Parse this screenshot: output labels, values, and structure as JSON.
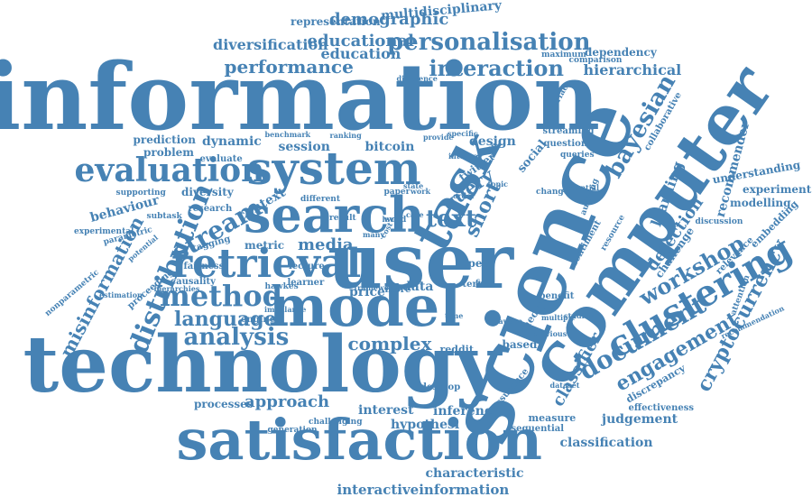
{
  "cloud": {
    "color": "#4682b4",
    "words": [
      "information",
      "technology",
      "satisfaction",
      "user",
      "science",
      "computer",
      "model",
      "search",
      "system",
      "retrieval",
      "task",
      "evaluation",
      "method",
      "language",
      "analysis",
      "clustering",
      "workshop",
      "document",
      "engagement",
      "distribution",
      "stream",
      "complex",
      "text",
      "query",
      "short",
      "bayesian",
      "personalisation",
      "interaction",
      "performance",
      "educational",
      "education",
      "demographic",
      "diversification",
      "representation",
      "multidisciplinary",
      "hierarchical",
      "dependency",
      "misinformation",
      "cryptocurrency",
      "classifier",
      "detection",
      "learning",
      "recommender",
      "approach",
      "interest",
      "hypothesi",
      "inference",
      "judgement",
      "classification",
      "characteristic",
      "interactiveinformation",
      "processes",
      "price",
      "data",
      "media",
      "context",
      "metric",
      "bitcoin",
      "session",
      "dynamic",
      "design",
      "behaviour",
      "diversity",
      "modelling",
      "experiment",
      "understanding",
      "prediction",
      "problem",
      "evaluate",
      "research",
      "open",
      "desktop",
      "measure",
      "sequential",
      "effectiveness",
      "discrepancy",
      "collaborative",
      "twitter",
      "social",
      "theory",
      "reddit",
      "engine",
      "based",
      "lecture",
      "learner",
      "more",
      "term",
      "benefit",
      "assurance",
      "challenging",
      "generation",
      "tagging",
      "fairness",
      "hawkes",
      "causality",
      "parametric",
      "experimental",
      "nonparametric",
      "supporting",
      "subtask",
      "proceeding",
      "word",
      "result",
      "different",
      "paper",
      "change",
      "question",
      "queries",
      "streaming",
      "interface",
      "auditing",
      "sentiment",
      "embedding",
      "relevance",
      "attention",
      "discussion",
      "challenge",
      "resource",
      "recommendation",
      "comparison",
      "maximum",
      "difference",
      "provide",
      "specific",
      "benchmark",
      "ranking",
      "many",
      "state",
      "work",
      "case",
      "order",
      "topic",
      "human",
      "internal",
      "potential",
      "dataset",
      "previous",
      "studies",
      "multiple",
      "aware",
      "time",
      "field",
      "cost",
      "level",
      "frameworks",
      "imbalance",
      "estimation",
      "hierarchies",
      "potential"
    ]
  }
}
